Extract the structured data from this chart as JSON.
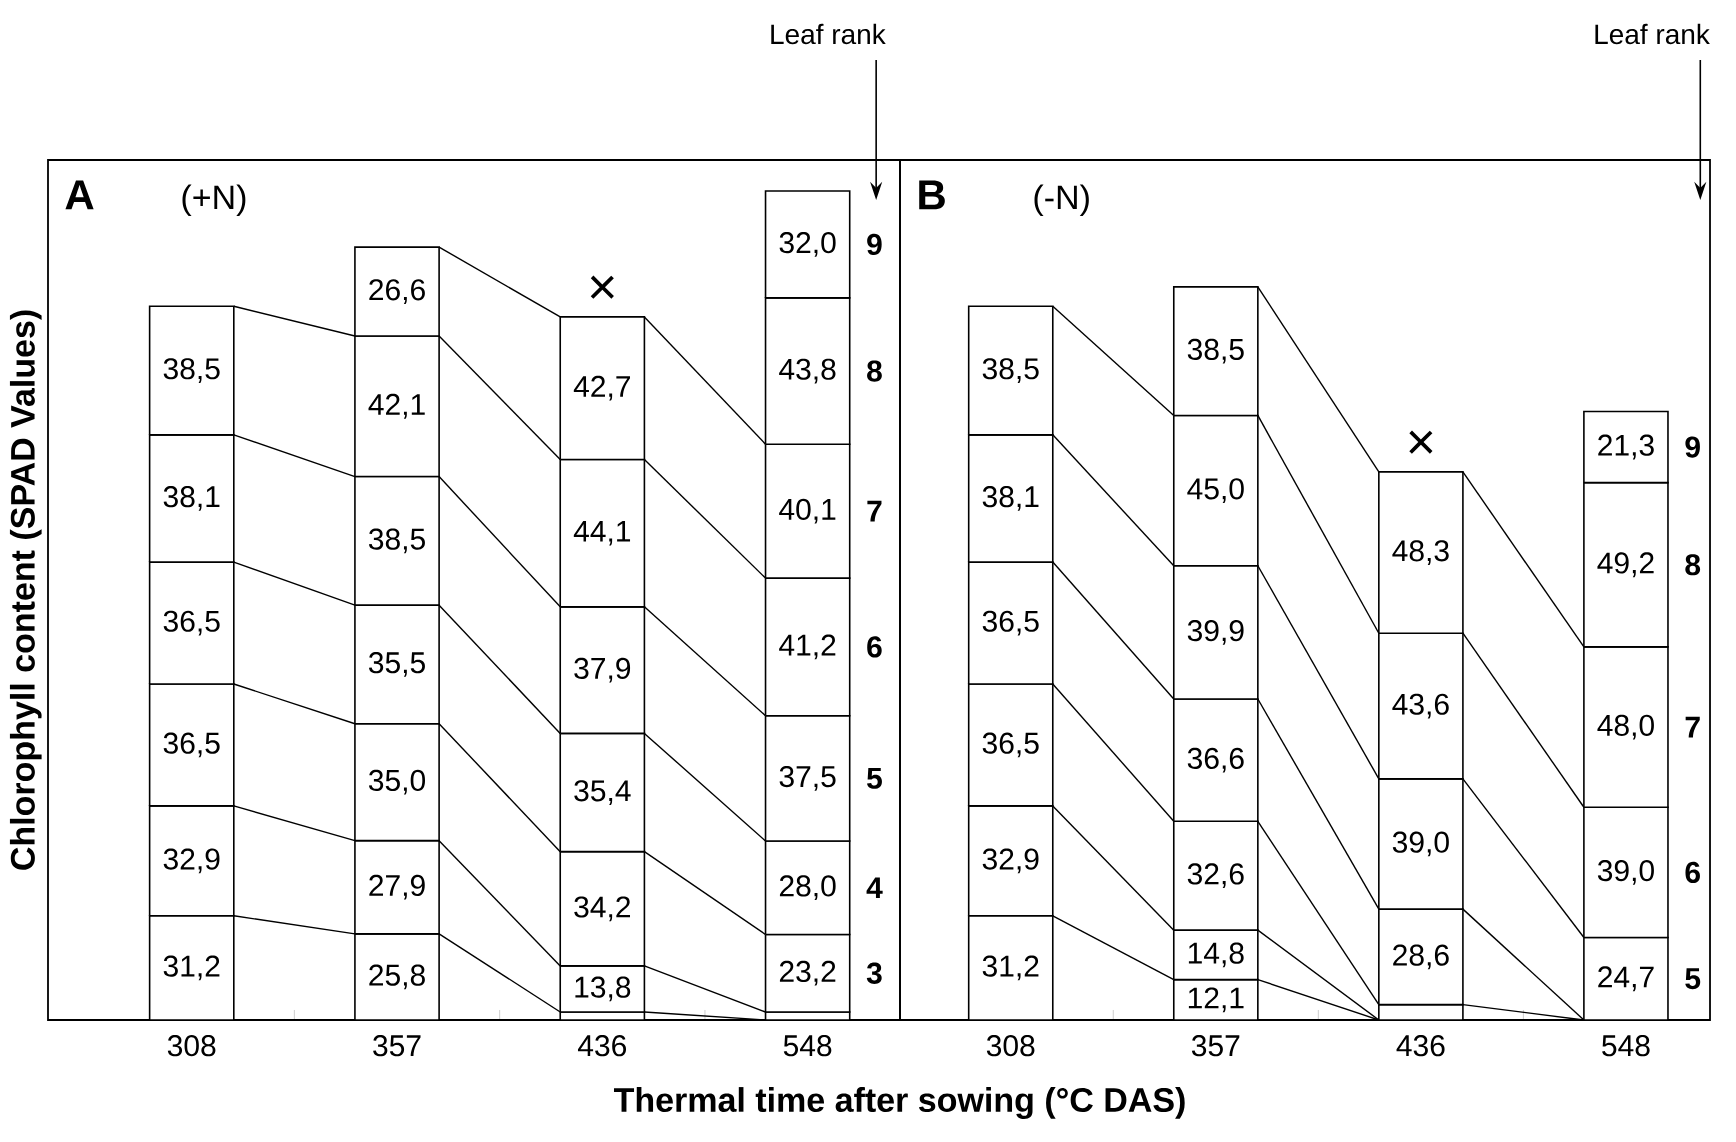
{
  "chart_data": [
    {
      "type": "bar",
      "title": "A",
      "subtitle": "(+N)",
      "ylabel": "Chlorophyll content (SPAD Values)",
      "xlabel": "Thermal time after sowing (°C DAS)",
      "stacked": true,
      "categories": [
        "308",
        "357",
        "436",
        "548"
      ],
      "series": [
        {
          "color": "#ffffff",
          "values": [
            31.2,
            25.8,
            2.4,
            0
          ],
          "value_labels": [
            "31,2",
            "25,8",
            null,
            null
          ]
        },
        {
          "color": "#ffffff",
          "values": [
            32.9,
            27.9,
            13.8,
            2.4
          ],
          "value_labels": [
            "32,9",
            "27,9",
            "13,8",
            null
          ]
        },
        {
          "name": "3",
          "color": "#ffffff",
          "values": [
            36.5,
            35.0,
            34.2,
            23.2
          ],
          "value_labels": [
            "36,5",
            "35,0",
            "34,2",
            "23,2"
          ]
        },
        {
          "name": "4",
          "color": "#ffffff",
          "values": [
            36.5,
            35.5,
            35.4,
            28.0
          ],
          "value_labels": [
            "36,5",
            "35,5",
            "35,4",
            "28,0"
          ]
        },
        {
          "name": "5",
          "color": "#ffffff",
          "values": [
            38.1,
            38.5,
            37.9,
            37.5
          ],
          "value_labels": [
            "38,1",
            "38,5",
            "37,9",
            "37,5"
          ]
        },
        {
          "name": "6",
          "color": "#ffffff",
          "values": [
            38.5,
            42.1,
            44.1,
            41.2
          ],
          "value_labels": [
            "38,5",
            "42,1",
            "44,1",
            "41,2"
          ]
        },
        {
          "name": "7",
          "color": "#ffffff",
          "values": [
            null,
            26.6,
            42.7,
            40.1
          ],
          "value_labels": [
            null,
            "26,6",
            "42,7",
            "40,1"
          ]
        },
        {
          "name": "8",
          "color": "#ffffff",
          "values": [
            null,
            null,
            null,
            43.8
          ],
          "value_labels": [
            null,
            null,
            null,
            "43,8"
          ]
        },
        {
          "name": "9",
          "color": "#ffffff",
          "values": [
            null,
            null,
            null,
            32.0
          ],
          "value_labels": [
            null,
            null,
            null,
            "32,0"
          ]
        }
      ],
      "annotations": [
        "Leaf rank",
        "×"
      ]
    },
    {
      "type": "bar",
      "title": "B",
      "subtitle": "(-N)",
      "stacked": true,
      "categories": [
        "308",
        "357",
        "436",
        "548"
      ],
      "series": [
        {
          "color": "#ffffff",
          "values": [
            31.2,
            12.1,
            0,
            0
          ],
          "value_labels": [
            "31,2",
            "12,1",
            null,
            null
          ]
        },
        {
          "color": "#ffffff",
          "values": [
            32.9,
            14.8,
            0,
            0
          ],
          "value_labels": [
            "32,9",
            "14,8",
            null,
            null
          ]
        },
        {
          "color": "#ffffff",
          "values": [
            36.5,
            32.6,
            4.6,
            0
          ],
          "value_labels": [
            "36,5",
            "32,6",
            null,
            null
          ]
        },
        {
          "color": "#ffffff",
          "values": [
            36.5,
            36.6,
            28.6,
            0
          ],
          "value_labels": [
            "36,5",
            "36,6",
            "28,6",
            null
          ]
        },
        {
          "name": "5",
          "color": "#ffffff",
          "values": [
            38.1,
            39.9,
            39.0,
            24.7
          ],
          "value_labels": [
            "38,1",
            "39,9",
            "39,0",
            "24,7"
          ]
        },
        {
          "name": "6",
          "color": "#ffffff",
          "values": [
            38.5,
            45.0,
            43.6,
            39.0
          ],
          "value_labels": [
            "38,5",
            "45,0",
            "43,6",
            "39,0"
          ]
        },
        {
          "name": "7",
          "color": "#ffffff",
          "values": [
            null,
            38.5,
            48.3,
            48.0
          ],
          "value_labels": [
            null,
            "38,5",
            "48,3",
            "48,0"
          ]
        },
        {
          "name": "8",
          "color": "#ffffff",
          "values": [
            null,
            null,
            null,
            49.2
          ],
          "value_labels": [
            null,
            null,
            null,
            "49,2"
          ]
        },
        {
          "name": "9",
          "color": "#ffffff",
          "values": [
            null,
            null,
            null,
            21.3
          ],
          "value_labels": [
            null,
            null,
            null,
            "21,3"
          ]
        }
      ],
      "annotations": [
        "Leaf rank",
        "×"
      ]
    }
  ]
}
